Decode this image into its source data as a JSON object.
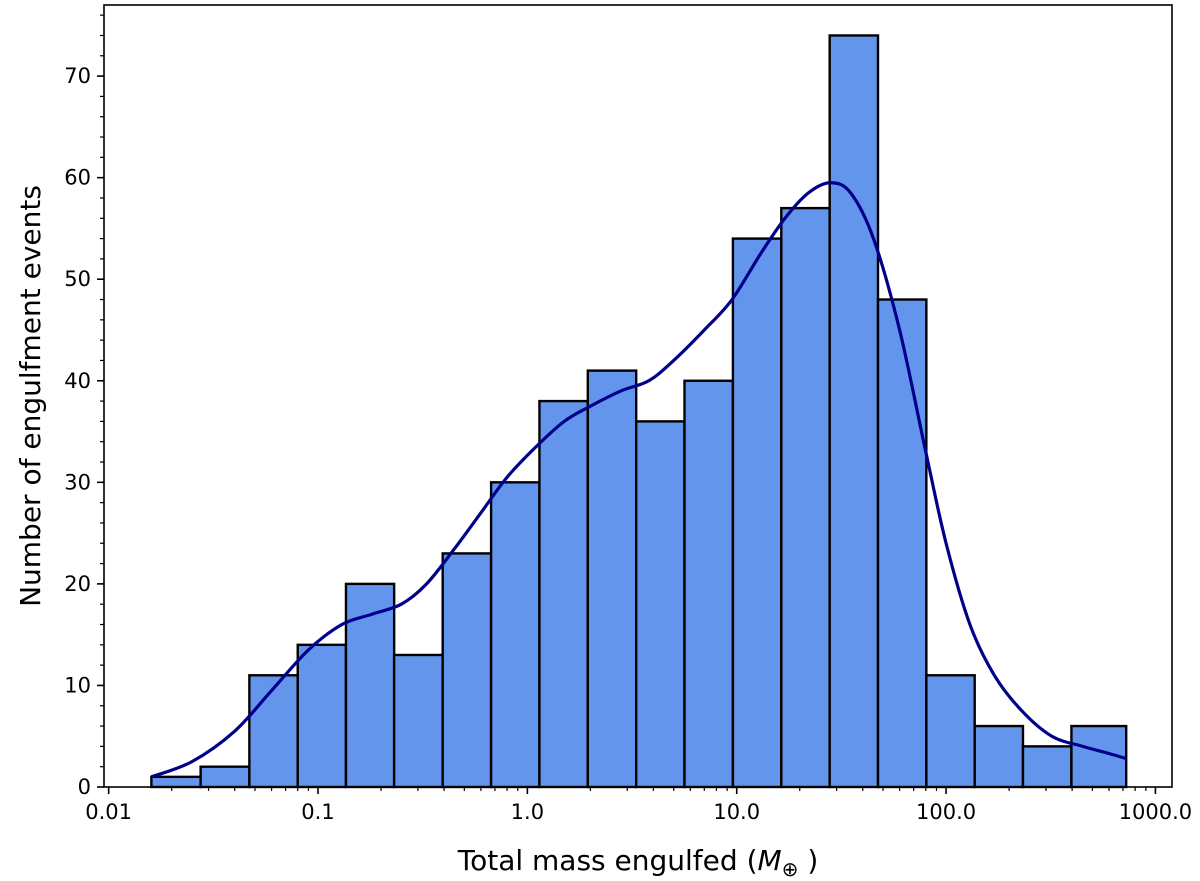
{
  "chart_data": {
    "type": "bar",
    "title": "",
    "xlabel": "Total mass engulfed",
    "xlabel_unit": "M",
    "xlabel_unit_sub": "⊕",
    "ylabel": "Number of engulfment events",
    "x_scale": "log",
    "xlim": [
      0.0095,
      1200
    ],
    "ylim": [
      0,
      77
    ],
    "x_ticks": [
      {
        "value": 0.01,
        "label": "0.01"
      },
      {
        "value": 0.1,
        "label": "0.1"
      },
      {
        "value": 1,
        "label": "1.0"
      },
      {
        "value": 10,
        "label": "10.0"
      },
      {
        "value": 100,
        "label": "100.0"
      },
      {
        "value": 1000,
        "label": "1000.0"
      }
    ],
    "y_ticks": [
      {
        "value": 0,
        "label": "0"
      },
      {
        "value": 10,
        "label": "10"
      },
      {
        "value": 20,
        "label": "20"
      },
      {
        "value": 30,
        "label": "30"
      },
      {
        "value": 40,
        "label": "40"
      },
      {
        "value": 50,
        "label": "50"
      },
      {
        "value": 60,
        "label": "60"
      },
      {
        "value": 70,
        "label": "70"
      }
    ],
    "bin_edges": [
      0.016,
      0.0275,
      0.047,
      0.08,
      0.136,
      0.231,
      0.394,
      0.671,
      1.142,
      1.944,
      3.31,
      5.63,
      9.59,
      16.33,
      27.8,
      47.3,
      80.5,
      137,
      233,
      397,
      725
    ],
    "counts": [
      1,
      2,
      11,
      14,
      20,
      13,
      23,
      30,
      38,
      41,
      36,
      40,
      54,
      57,
      74,
      48,
      11,
      6,
      4,
      6
    ],
    "kde": {
      "x": [
        0.016,
        0.025,
        0.04,
        0.06,
        0.09,
        0.13,
        0.18,
        0.25,
        0.33,
        0.45,
        0.6,
        0.8,
        1.1,
        1.5,
        2.0,
        2.8,
        3.8,
        5.0,
        7.0,
        9.5,
        13.0,
        17.0,
        22.0,
        28.0,
        35.0,
        45.0,
        60.0,
        80.0,
        100.0,
        130.0,
        170.0,
        230.0,
        320.0,
        450.0,
        600.0,
        725.0
      ],
      "y": [
        1,
        2.5,
        5.5,
        9.5,
        13.5,
        16,
        17,
        18,
        20,
        23.5,
        27,
        30.5,
        33.5,
        36,
        37.5,
        39,
        40,
        42,
        45,
        48,
        52.5,
        56,
        58.5,
        59.5,
        58.5,
        54,
        45,
        33,
        24,
        16,
        11,
        7.5,
        5,
        4,
        3.3,
        2.8
      ]
    },
    "colors": {
      "bar": "#6495ed",
      "edge": "#000000",
      "kde": "#00008b"
    },
    "grid": false,
    "legend": "none"
  }
}
